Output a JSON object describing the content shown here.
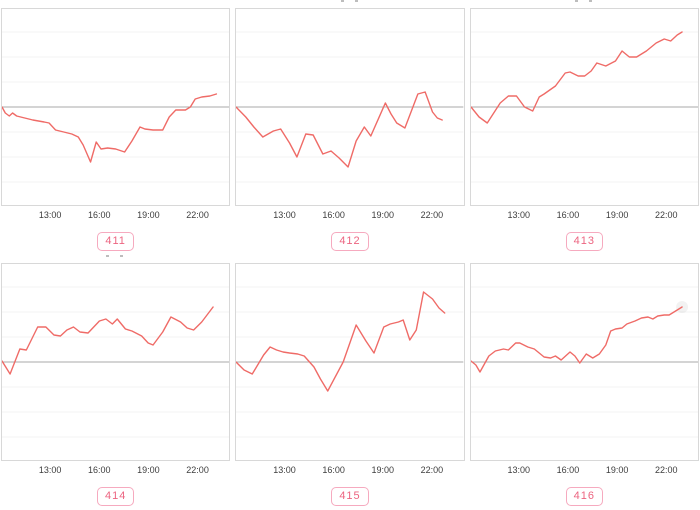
{
  "chart_data": {
    "type": "line",
    "series_color": "#ef6b67",
    "baseline_color": "#a8a8a8",
    "grid_color": "#f3f3f3",
    "x_ticks": [
      "13:00",
      "16:00",
      "19:00",
      "22:00"
    ],
    "x_tick_hours": [
      13,
      16,
      19,
      22
    ],
    "x_range_hours": [
      10,
      24
    ],
    "y_axis_note": "y axis unlabeled; values are relative offsets from the gray zero baseline (baseline = 0), estimated from pixels",
    "grid_offsets": [
      -75,
      -50,
      -25,
      25,
      50,
      75
    ],
    "charts": [
      {
        "label": "411",
        "points": [
          [
            10.0,
            0
          ],
          [
            10.2,
            -6
          ],
          [
            10.45,
            -9
          ],
          [
            10.65,
            -6
          ],
          [
            10.9,
            -9
          ],
          [
            11.4,
            -11
          ],
          [
            11.9,
            -13
          ],
          [
            12.6,
            -15
          ],
          [
            12.9,
            -16
          ],
          [
            13.3,
            -23
          ],
          [
            13.8,
            -25
          ],
          [
            14.3,
            -27
          ],
          [
            14.7,
            -30
          ],
          [
            15.0,
            -38
          ],
          [
            15.45,
            -55
          ],
          [
            15.8,
            -35
          ],
          [
            16.1,
            -42
          ],
          [
            16.5,
            -41
          ],
          [
            17.0,
            -42
          ],
          [
            17.55,
            -45
          ],
          [
            18.0,
            -34
          ],
          [
            18.5,
            -20
          ],
          [
            18.8,
            -22
          ],
          [
            19.3,
            -23
          ],
          [
            19.9,
            -23
          ],
          [
            20.3,
            -10
          ],
          [
            20.7,
            -3
          ],
          [
            21.3,
            -3
          ],
          [
            21.6,
            0
          ],
          [
            21.9,
            8
          ],
          [
            22.3,
            10
          ],
          [
            22.8,
            11
          ],
          [
            23.2,
            13
          ]
        ]
      },
      {
        "label": "412",
        "points": [
          [
            10.0,
            0
          ],
          [
            10.6,
            -10
          ],
          [
            11.1,
            -20
          ],
          [
            11.65,
            -30
          ],
          [
            12.3,
            -24
          ],
          [
            12.75,
            -22
          ],
          [
            13.3,
            -36
          ],
          [
            13.75,
            -50
          ],
          [
            14.3,
            -27
          ],
          [
            14.75,
            -28
          ],
          [
            15.35,
            -47
          ],
          [
            15.85,
            -44
          ],
          [
            16.35,
            -51
          ],
          [
            16.9,
            -60
          ],
          [
            17.4,
            -34
          ],
          [
            17.9,
            -20
          ],
          [
            18.3,
            -29
          ],
          [
            19.2,
            4
          ],
          [
            19.55,
            -7
          ],
          [
            19.9,
            -16
          ],
          [
            20.4,
            -21
          ],
          [
            21.2,
            13
          ],
          [
            21.65,
            15
          ],
          [
            22.1,
            -5
          ],
          [
            22.4,
            -11
          ],
          [
            22.7,
            -13
          ]
        ]
      },
      {
        "label": "413",
        "points": [
          [
            10.0,
            0
          ],
          [
            10.5,
            -10
          ],
          [
            11.0,
            -16
          ],
          [
            11.8,
            4
          ],
          [
            12.3,
            11
          ],
          [
            12.8,
            11
          ],
          [
            13.3,
            0
          ],
          [
            13.8,
            -4
          ],
          [
            14.2,
            10
          ],
          [
            14.5,
            13
          ],
          [
            15.2,
            21
          ],
          [
            15.8,
            34
          ],
          [
            16.1,
            35
          ],
          [
            16.6,
            31
          ],
          [
            17.0,
            31
          ],
          [
            17.4,
            36
          ],
          [
            17.75,
            44
          ],
          [
            18.3,
            41
          ],
          [
            18.9,
            46
          ],
          [
            19.3,
            56
          ],
          [
            19.75,
            50
          ],
          [
            20.2,
            50
          ],
          [
            20.8,
            56
          ],
          [
            21.4,
            64
          ],
          [
            21.9,
            68
          ],
          [
            22.3,
            66
          ],
          [
            22.7,
            72
          ],
          [
            23.0,
            75
          ]
        ]
      },
      {
        "label": "414",
        "points": [
          [
            10.0,
            1
          ],
          [
            10.5,
            -12
          ],
          [
            11.1,
            13
          ],
          [
            11.5,
            12
          ],
          [
            12.2,
            35
          ],
          [
            12.7,
            35
          ],
          [
            13.2,
            27
          ],
          [
            13.6,
            26
          ],
          [
            14.0,
            32
          ],
          [
            14.4,
            35
          ],
          [
            14.8,
            30
          ],
          [
            15.3,
            29
          ],
          [
            16.0,
            41
          ],
          [
            16.4,
            43
          ],
          [
            16.8,
            38
          ],
          [
            17.1,
            43
          ],
          [
            17.6,
            33
          ],
          [
            18.0,
            31
          ],
          [
            18.6,
            26
          ],
          [
            19.0,
            19
          ],
          [
            19.3,
            17
          ],
          [
            19.9,
            30
          ],
          [
            20.4,
            45
          ],
          [
            21.0,
            40
          ],
          [
            21.4,
            34
          ],
          [
            21.8,
            32
          ],
          [
            22.3,
            40
          ],
          [
            23.0,
            55
          ]
        ]
      },
      {
        "label": "415",
        "points": [
          [
            10.0,
            0
          ],
          [
            10.5,
            -8
          ],
          [
            11.0,
            -12
          ],
          [
            11.7,
            7
          ],
          [
            12.1,
            15
          ],
          [
            12.5,
            12
          ],
          [
            12.9,
            10
          ],
          [
            13.3,
            9
          ],
          [
            13.8,
            8
          ],
          [
            14.2,
            6
          ],
          [
            14.8,
            -5
          ],
          [
            15.2,
            -17
          ],
          [
            15.65,
            -29
          ],
          [
            16.6,
            0
          ],
          [
            17.1,
            23
          ],
          [
            17.4,
            37
          ],
          [
            18.0,
            21
          ],
          [
            18.5,
            9
          ],
          [
            19.1,
            35
          ],
          [
            19.5,
            38
          ],
          [
            20.0,
            40
          ],
          [
            20.3,
            42
          ],
          [
            20.7,
            22
          ],
          [
            21.1,
            32
          ],
          [
            21.55,
            70
          ],
          [
            22.1,
            63
          ],
          [
            22.5,
            54
          ],
          [
            22.85,
            49
          ]
        ]
      },
      {
        "label": "416",
        "end_marker": true,
        "points": [
          [
            10.0,
            1
          ],
          [
            10.3,
            -3
          ],
          [
            10.55,
            -10
          ],
          [
            11.1,
            6
          ],
          [
            11.5,
            11
          ],
          [
            12.0,
            13
          ],
          [
            12.3,
            12
          ],
          [
            12.75,
            19
          ],
          [
            13.0,
            19
          ],
          [
            13.5,
            15
          ],
          [
            13.9,
            13
          ],
          [
            14.5,
            5
          ],
          [
            14.9,
            4
          ],
          [
            15.2,
            6
          ],
          [
            15.55,
            2
          ],
          [
            16.1,
            10
          ],
          [
            16.4,
            6
          ],
          [
            16.7,
            -1
          ],
          [
            17.1,
            8
          ],
          [
            17.5,
            4
          ],
          [
            17.9,
            8
          ],
          [
            18.3,
            17
          ],
          [
            18.6,
            31
          ],
          [
            18.9,
            33
          ],
          [
            19.3,
            34
          ],
          [
            19.6,
            38
          ],
          [
            20.1,
            41
          ],
          [
            20.5,
            44
          ],
          [
            20.9,
            45
          ],
          [
            21.2,
            43
          ],
          [
            21.5,
            46
          ],
          [
            21.9,
            47
          ],
          [
            22.2,
            47
          ],
          [
            22.5,
            50
          ],
          [
            23.0,
            55
          ]
        ]
      }
    ]
  },
  "badges": {
    "text_color": "#ec6480",
    "border_color": "#f6aabf"
  }
}
